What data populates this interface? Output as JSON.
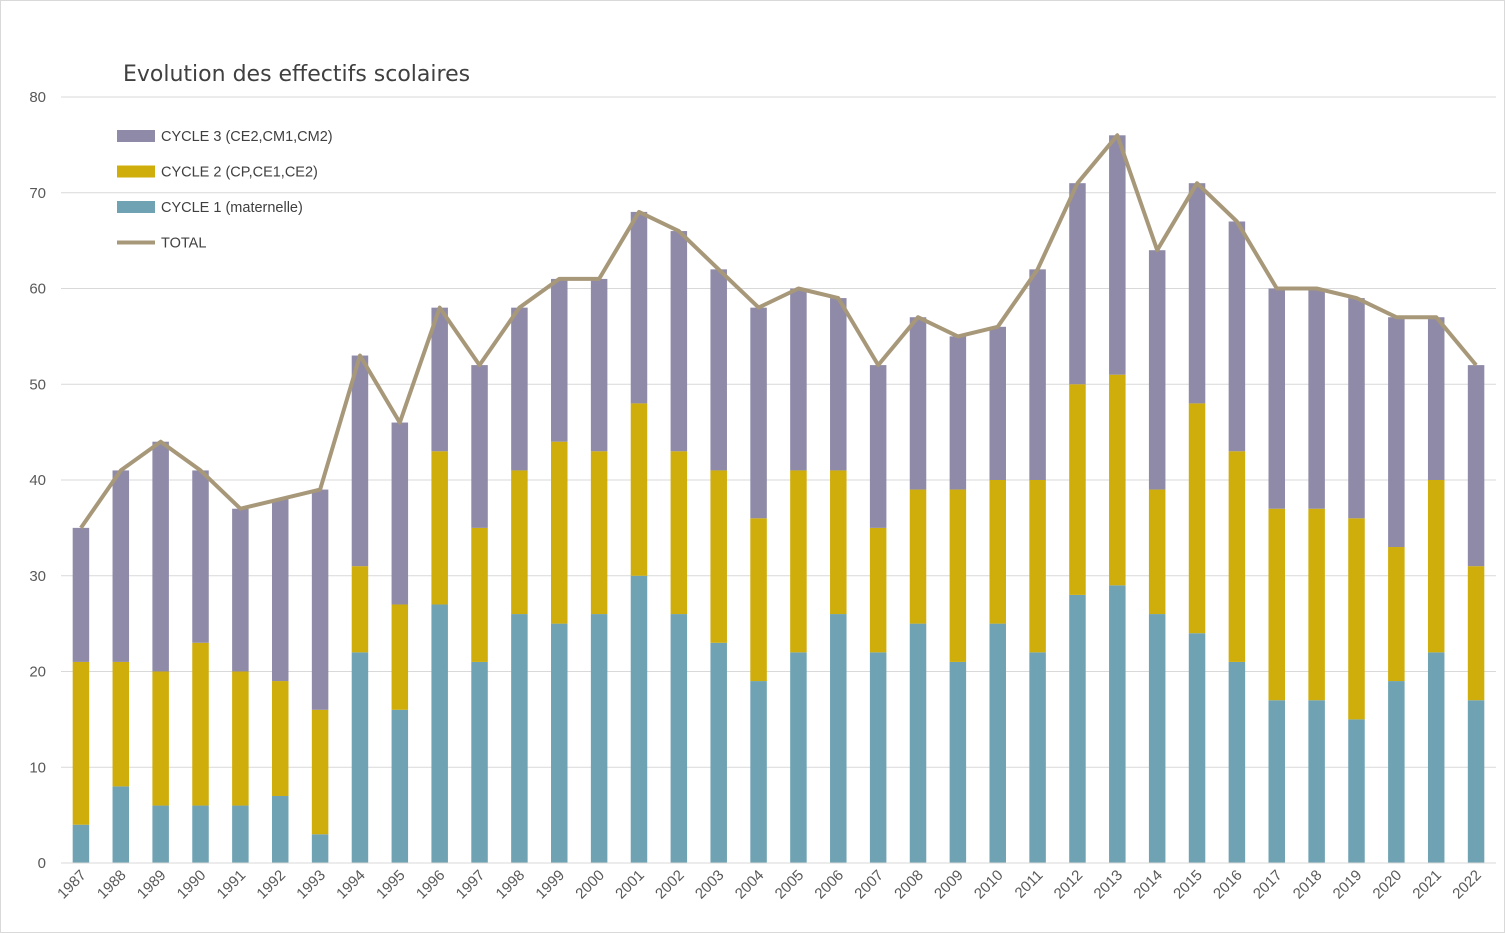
{
  "chart_data": {
    "type": "bar",
    "subtype": "stacked-bar-with-line",
    "title": "Evolution des effectifs scolaires",
    "xlabel": "",
    "ylabel": "",
    "ylim": [
      0,
      80
    ],
    "yticks": [
      "0",
      "10",
      "20",
      "30",
      "40",
      "50",
      "60",
      "70",
      "80"
    ],
    "grid": true,
    "legend_position": "top-left",
    "categories": [
      "1987",
      "1988",
      "1989",
      "1990",
      "1991",
      "1992",
      "1993",
      "1994",
      "1995",
      "1996",
      "1997",
      "1998",
      "1999",
      "2000",
      "2001",
      "2002",
      "2003",
      "2004",
      "2005",
      "2006",
      "2007",
      "2008",
      "2009",
      "2010",
      "2011",
      "2012",
      "2013",
      "2014",
      "2015",
      "2016",
      "2017",
      "2018",
      "2019",
      "2020",
      "2021",
      "2022"
    ],
    "series": [
      {
        "name": "CYCLE 1 (maternelle)",
        "kind": "bar",
        "color": "#6fa3b3",
        "values": [
          4,
          8,
          6,
          6,
          6,
          7,
          3,
          22,
          16,
          27,
          21,
          26,
          25,
          26,
          30,
          26,
          23,
          19,
          22,
          26,
          22,
          25,
          21,
          25,
          22,
          28,
          29,
          26,
          24,
          21,
          17,
          17,
          15,
          19,
          22,
          17
        ]
      },
      {
        "name": "CYCLE 2 (CP,CE1,CE2)",
        "kind": "bar",
        "color": "#cfad0a",
        "values": [
          17,
          13,
          14,
          17,
          14,
          12,
          13,
          9,
          11,
          16,
          14,
          15,
          19,
          17,
          18,
          17,
          18,
          17,
          19,
          15,
          13,
          14,
          18,
          15,
          18,
          22,
          22,
          13,
          24,
          22,
          20,
          20,
          21,
          14,
          18,
          14
        ]
      },
      {
        "name": "CYCLE 3 (CE2,CM1,CM2)",
        "kind": "bar",
        "color": "#8f8aa8",
        "values": [
          14,
          20,
          24,
          18,
          17,
          19,
          23,
          22,
          19,
          15,
          17,
          17,
          17,
          18,
          20,
          23,
          21,
          22,
          19,
          18,
          17,
          18,
          16,
          16,
          22,
          21,
          25,
          25,
          23,
          24,
          23,
          23,
          23,
          24,
          17,
          21
        ]
      },
      {
        "name": "TOTAL",
        "kind": "line",
        "color": "#a8987a",
        "values": [
          35,
          41,
          44,
          41,
          37,
          38,
          39,
          53,
          46,
          58,
          52,
          58,
          61,
          61,
          68,
          66,
          62,
          58,
          60,
          59,
          52,
          57,
          55,
          56,
          62,
          71,
          76,
          64,
          71,
          67,
          60,
          60,
          59,
          57,
          57,
          52
        ]
      }
    ],
    "legend": [
      {
        "label": "CYCLE 3 (CE2,CM1,CM2)",
        "color": "#8f8aa8",
        "symbol": "box"
      },
      {
        "label": "CYCLE 2 (CP,CE1,CE2)",
        "color": "#cfad0a",
        "symbol": "box"
      },
      {
        "label": "CYCLE 1 (maternelle)",
        "color": "#6fa3b3",
        "symbol": "box"
      },
      {
        "label": "TOTAL",
        "color": "#a8987a",
        "symbol": "line"
      }
    ]
  }
}
